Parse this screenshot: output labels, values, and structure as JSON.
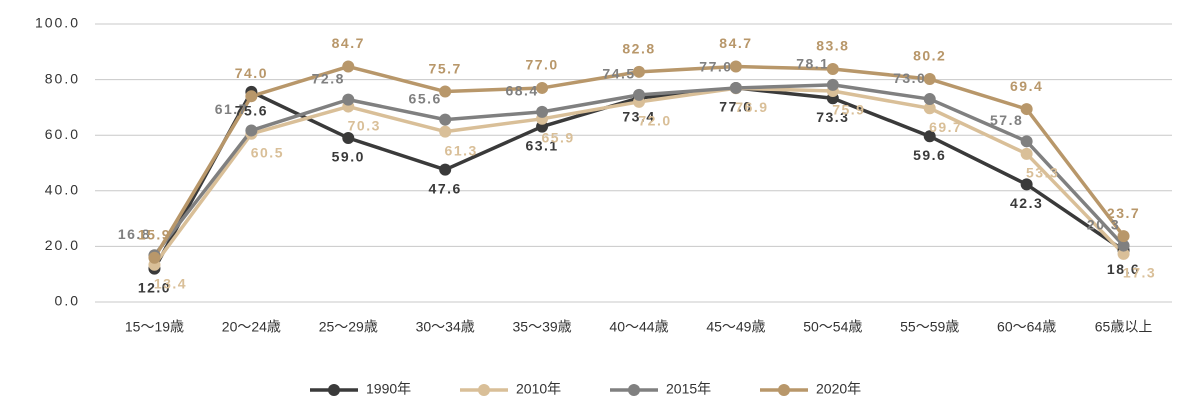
{
  "chart_data": {
    "type": "line",
    "categories": [
      "15〜19歳",
      "20〜24歳",
      "25〜29歳",
      "30〜34歳",
      "35〜39歳",
      "40〜44歳",
      "45〜49歳",
      "50〜54歳",
      "55〜59歳",
      "60〜64歳",
      "65歳以上"
    ],
    "ylim": [
      0,
      100
    ],
    "yticks": [
      {
        "value": 0,
        "label": "0.0"
      },
      {
        "value": 20,
        "label": "20.0"
      },
      {
        "value": 40,
        "label": "40.0"
      },
      {
        "value": 60,
        "label": "60.0"
      },
      {
        "value": 80,
        "label": "80.0"
      },
      {
        "value": 100,
        "label": "100.0"
      }
    ],
    "grid": true,
    "legend": "bottom",
    "series": [
      {
        "name": "1990年",
        "color": "#3a3a3a",
        "values": [
          12.0,
          75.6,
          59.0,
          47.6,
          63.1,
          73.4,
          77.0,
          73.3,
          59.6,
          42.3,
          18.6
        ],
        "value_labels": [
          "12.0",
          "75.6",
          "59.0",
          "47.6",
          "63.1",
          "73.4",
          "77.0",
          "73.3",
          "59.6",
          "42.3",
          "18.6"
        ]
      },
      {
        "name": "2010年",
        "color": "#d9bf98",
        "values": [
          13.4,
          60.5,
          70.3,
          61.3,
          65.9,
          72.0,
          76.9,
          75.9,
          69.7,
          53.3,
          17.3
        ],
        "value_labels": [
          "13.4",
          "60.5",
          "70.3",
          "61.3",
          "65.9",
          "72.0",
          "76.9",
          "75.9",
          "69.7",
          "53.3",
          "17.3"
        ]
      },
      {
        "name": "2015年",
        "color": "#808080",
        "values": [
          16.8,
          61.7,
          72.8,
          65.6,
          68.4,
          74.5,
          77.0,
          78.1,
          73.0,
          57.8,
          20.3
        ],
        "value_labels": [
          "16.8",
          "61.7",
          "72.8",
          "65.6",
          "68.4",
          "74.5",
          "77.0",
          "78.1",
          "73.0",
          "57.8",
          "20.3"
        ]
      },
      {
        "name": "2020年",
        "color": "#b8976a",
        "values": [
          15.9,
          74.0,
          84.7,
          75.7,
          77.0,
          82.8,
          84.7,
          83.8,
          80.2,
          69.4,
          23.7
        ],
        "value_labels": [
          "15.9",
          "74.0",
          "84.7",
          "75.7",
          "77.0",
          "82.8",
          "84.7",
          "83.8",
          "80.2",
          "69.4",
          "23.7"
        ]
      }
    ]
  }
}
